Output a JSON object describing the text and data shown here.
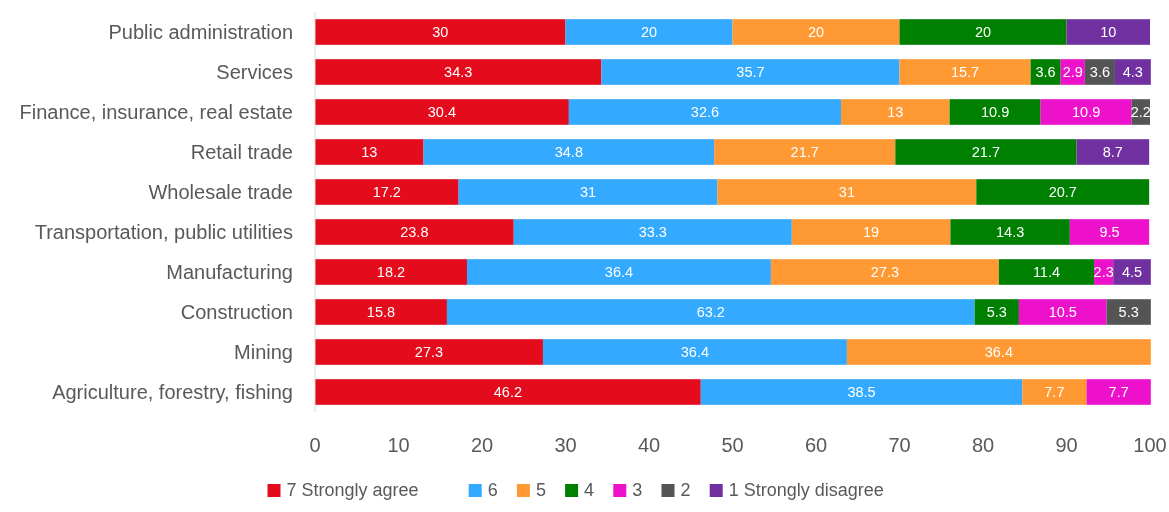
{
  "chart_data": {
    "type": "bar",
    "orientation": "horizontal",
    "stacked": true,
    "data_labels": true,
    "legend": "bottom",
    "grid": false,
    "categories": [
      "Public administration",
      "Services",
      "Finance, insurance, real estate",
      "Retail trade",
      "Wholesale trade",
      "Transportation, public utilities",
      "Manufacturing",
      "Construction",
      "Mining",
      "Agriculture, forestry, fishing"
    ],
    "xlim": [
      0,
      100
    ],
    "xticks": [
      0,
      10,
      20,
      30,
      40,
      50,
      60,
      70,
      80,
      90,
      100
    ],
    "series": [
      {
        "name": "7 Strongly agree",
        "color": "#e30b1c",
        "values": [
          30,
          34.3,
          30.4,
          13,
          17.2,
          23.8,
          18.2,
          15.8,
          27.3,
          46.2
        ]
      },
      {
        "name": "6",
        "color": "#33aaff",
        "values": [
          20,
          35.7,
          32.6,
          34.8,
          31,
          33.3,
          36.4,
          63.2,
          36.4,
          38.5
        ]
      },
      {
        "name": "5",
        "color": "#ff9933",
        "values": [
          20,
          15.7,
          13,
          21.7,
          31,
          19,
          27.3,
          null,
          36.4,
          7.7
        ]
      },
      {
        "name": "4",
        "color": "#008000",
        "values": [
          20,
          3.6,
          10.9,
          21.7,
          20.7,
          14.3,
          11.4,
          5.3,
          null,
          null
        ]
      },
      {
        "name": "3",
        "color": "#ee11cc",
        "values": [
          null,
          2.9,
          10.9,
          null,
          null,
          9.5,
          2.3,
          10.5,
          null,
          7.7
        ]
      },
      {
        "name": "2",
        "color": "#555555",
        "values": [
          null,
          3.6,
          2.2,
          null,
          null,
          null,
          null,
          5.3,
          null,
          null
        ]
      },
      {
        "name": "1 Strongly disagree",
        "color": "#7030a0",
        "values": [
          10,
          4.3,
          null,
          8.7,
          null,
          null,
          4.5,
          null,
          null,
          null
        ]
      }
    ]
  }
}
